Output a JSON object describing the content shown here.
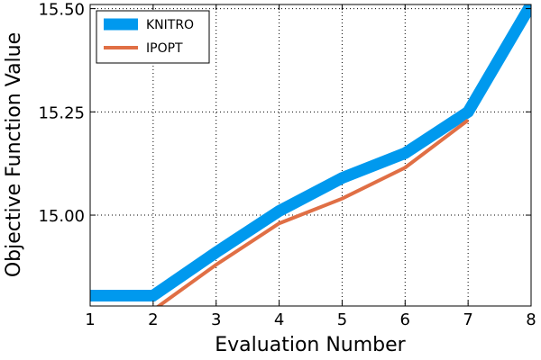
{
  "chart_data": {
    "type": "line",
    "xlabel": "Evaluation Number",
    "ylabel": "Objective Function Value",
    "xlim": [
      1,
      8
    ],
    "ylim": [
      14.78,
      15.51
    ],
    "x_ticks": [
      "1",
      "2",
      "3",
      "4",
      "5",
      "6",
      "7",
      "8"
    ],
    "y_ticks": [
      15.0,
      15.25,
      15.5
    ],
    "y_tick_labels": [
      "15.00",
      "15.25",
      "15.50"
    ],
    "grid": true,
    "legend_position": "top-left",
    "series": [
      {
        "name": "KNITRO",
        "color": "#0099ee",
        "x": [
          1,
          2,
          3,
          4,
          5,
          6,
          7,
          8
        ],
        "values": [
          14.805,
          14.805,
          14.91,
          15.01,
          15.09,
          15.15,
          15.25,
          15.51
        ]
      },
      {
        "name": "IPOPT",
        "color": "#e06f45",
        "x": [
          1,
          2,
          3,
          4,
          5,
          6,
          7
        ],
        "values": [
          14.77,
          14.77,
          14.88,
          14.98,
          15.04,
          15.115,
          15.23
        ]
      }
    ]
  }
}
